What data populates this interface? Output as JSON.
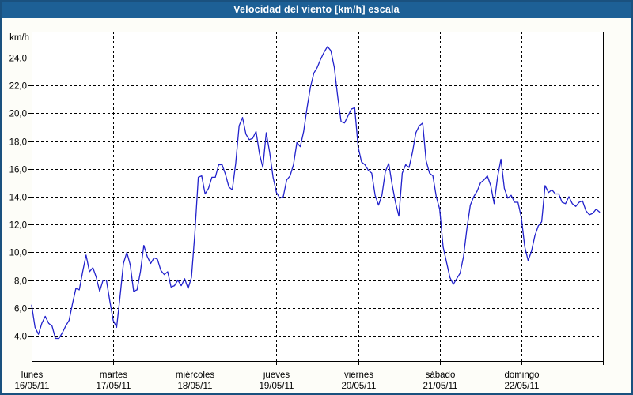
{
  "window": {
    "title": "Velocidad del viento [km/h] escala",
    "colors": {
      "titlebar_bg": "#1d6096",
      "titlebar_text": "#ffffff",
      "window_border": "#1a517f",
      "window_bg": "#fdfdf8",
      "plot_bg": "#ffffff",
      "grid_color": "#000000",
      "axis_text": "#000000",
      "series_color": "#2222cc"
    }
  },
  "chart_data": {
    "type": "line",
    "title": "Velocidad del viento [km/h] escala",
    "ylabel": "km/h",
    "grid": "dashed",
    "legend": "none",
    "x_axis": {
      "hours_per_day": 24,
      "total_hours": 168,
      "days": [
        {
          "name": "lunes",
          "date": "16/05/11"
        },
        {
          "name": "martes",
          "date": "17/05/11"
        },
        {
          "name": "miércoles",
          "date": "18/05/11"
        },
        {
          "name": "jueves",
          "date": "19/05/11"
        },
        {
          "name": "viernes",
          "date": "20/05/11"
        },
        {
          "name": "sábado",
          "date": "21/05/11"
        },
        {
          "name": "domingo",
          "date": "22/05/11"
        }
      ]
    },
    "y_axis": {
      "min": 2.2,
      "max": 25.9,
      "tick_step": 2,
      "ticks": [
        {
          "v": 24,
          "label": "24,0"
        },
        {
          "v": 22,
          "label": "22,0"
        },
        {
          "v": 20,
          "label": "20,0"
        },
        {
          "v": 18,
          "label": "18,0"
        },
        {
          "v": 16,
          "label": "16,0"
        },
        {
          "v": 14,
          "label": "14,0"
        },
        {
          "v": 12,
          "label": "12,0"
        },
        {
          "v": 10,
          "label": "10,0"
        },
        {
          "v": 8,
          "label": "8,0"
        },
        {
          "v": 6,
          "label": "6,0"
        },
        {
          "v": 4,
          "label": "4,0"
        }
      ]
    },
    "series": [
      {
        "name": "Velocidad del viento",
        "unit": "km/h",
        "color": "#2222cc",
        "points_hours_kmh": [
          [
            0,
            6.2
          ],
          [
            1,
            4.6
          ],
          [
            2,
            4.1
          ],
          [
            3,
            4.9
          ],
          [
            4,
            5.4
          ],
          [
            5,
            4.9
          ],
          [
            6,
            4.7
          ],
          [
            7,
            3.8
          ],
          [
            8,
            3.8
          ],
          [
            9,
            4.2
          ],
          [
            10,
            4.7
          ],
          [
            11,
            5.1
          ],
          [
            12,
            6.3
          ],
          [
            13,
            7.4
          ],
          [
            14,
            7.3
          ],
          [
            15,
            8.6
          ],
          [
            16,
            9.8
          ],
          [
            17,
            8.6
          ],
          [
            18,
            8.9
          ],
          [
            19,
            8.2
          ],
          [
            20,
            7.2
          ],
          [
            21,
            8.0
          ],
          [
            22,
            8.0
          ],
          [
            23,
            6.5
          ],
          [
            24,
            5.1
          ],
          [
            25,
            4.6
          ],
          [
            26,
            6.8
          ],
          [
            27,
            9.2
          ],
          [
            28,
            10.0
          ],
          [
            29,
            9.1
          ],
          [
            30,
            7.2
          ],
          [
            31,
            7.3
          ],
          [
            32,
            8.6
          ],
          [
            33,
            10.5
          ],
          [
            34,
            9.7
          ],
          [
            35,
            9.2
          ],
          [
            36,
            9.6
          ],
          [
            37,
            9.5
          ],
          [
            38,
            8.7
          ],
          [
            39,
            8.4
          ],
          [
            40,
            8.6
          ],
          [
            41,
            7.5
          ],
          [
            42,
            7.6
          ],
          [
            43,
            8.0
          ],
          [
            44,
            7.6
          ],
          [
            45,
            8.1
          ],
          [
            46,
            7.4
          ],
          [
            47,
            8.2
          ],
          [
            48,
            11.4
          ],
          [
            49,
            15.4
          ],
          [
            50,
            15.5
          ],
          [
            51,
            14.2
          ],
          [
            52,
            14.6
          ],
          [
            53,
            15.4
          ],
          [
            54,
            15.4
          ],
          [
            55,
            16.3
          ],
          [
            56,
            16.3
          ],
          [
            57,
            15.6
          ],
          [
            58,
            14.7
          ],
          [
            59,
            14.5
          ],
          [
            60,
            16.4
          ],
          [
            61,
            19.1
          ],
          [
            62,
            19.7
          ],
          [
            63,
            18.5
          ],
          [
            64,
            18.1
          ],
          [
            65,
            18.2
          ],
          [
            66,
            18.7
          ],
          [
            67,
            17.1
          ],
          [
            68,
            16.1
          ],
          [
            69,
            18.6
          ],
          [
            70,
            17.2
          ],
          [
            71,
            15.4
          ],
          [
            72,
            14.3
          ],
          [
            73,
            13.9
          ],
          [
            74,
            14.0
          ],
          [
            75,
            15.2
          ],
          [
            76,
            15.5
          ],
          [
            77,
            16.3
          ],
          [
            78,
            17.9
          ],
          [
            79,
            17.6
          ],
          [
            80,
            18.7
          ],
          [
            81,
            20.4
          ],
          [
            82,
            21.9
          ],
          [
            83,
            22.9
          ],
          [
            84,
            23.3
          ],
          [
            85,
            23.9
          ],
          [
            86,
            24.4
          ],
          [
            87,
            24.8
          ],
          [
            88,
            24.5
          ],
          [
            89,
            23.3
          ],
          [
            90,
            21.2
          ],
          [
            91,
            19.4
          ],
          [
            92,
            19.3
          ],
          [
            93,
            19.8
          ],
          [
            94,
            20.3
          ],
          [
            95,
            20.4
          ],
          [
            96,
            17.6
          ],
          [
            97,
            16.5
          ],
          [
            98,
            16.3
          ],
          [
            99,
            15.9
          ],
          [
            100,
            15.7
          ],
          [
            101,
            14.1
          ],
          [
            102,
            13.4
          ],
          [
            103,
            14.1
          ],
          [
            104,
            15.8
          ],
          [
            105,
            16.4
          ],
          [
            106,
            14.9
          ],
          [
            107,
            13.6
          ],
          [
            108,
            12.6
          ],
          [
            109,
            15.7
          ],
          [
            110,
            16.3
          ],
          [
            111,
            16.1
          ],
          [
            112,
            17.2
          ],
          [
            113,
            18.6
          ],
          [
            114,
            19.1
          ],
          [
            115,
            19.3
          ],
          [
            116,
            16.6
          ],
          [
            117,
            15.7
          ],
          [
            118,
            15.5
          ],
          [
            119,
            14.0
          ],
          [
            120,
            13.1
          ],
          [
            121,
            10.4
          ],
          [
            122,
            9.3
          ],
          [
            123,
            8.2
          ],
          [
            124,
            7.7
          ],
          [
            125,
            8.1
          ],
          [
            126,
            8.5
          ],
          [
            127,
            9.7
          ],
          [
            128,
            11.7
          ],
          [
            129,
            13.4
          ],
          [
            130,
            14.0
          ],
          [
            131,
            14.4
          ],
          [
            132,
            15.0
          ],
          [
            133,
            15.2
          ],
          [
            134,
            15.5
          ],
          [
            135,
            14.8
          ],
          [
            136,
            13.5
          ],
          [
            137,
            15.4
          ],
          [
            138,
            16.7
          ],
          [
            139,
            14.6
          ],
          [
            140,
            13.9
          ],
          [
            141,
            14.1
          ],
          [
            142,
            13.6
          ],
          [
            143,
            13.6
          ],
          [
            144,
            12.5
          ],
          [
            145,
            10.4
          ],
          [
            146,
            9.4
          ],
          [
            147,
            10.1
          ],
          [
            148,
            11.2
          ],
          [
            149,
            11.9
          ],
          [
            150,
            12.2
          ],
          [
            151,
            14.8
          ],
          [
            152,
            14.3
          ],
          [
            153,
            14.5
          ],
          [
            154,
            14.2
          ],
          [
            155,
            14.2
          ],
          [
            156,
            13.6
          ],
          [
            157,
            13.5
          ],
          [
            158,
            14.0
          ],
          [
            159,
            13.5
          ],
          [
            160,
            13.3
          ],
          [
            161,
            13.6
          ],
          [
            162,
            13.7
          ],
          [
            163,
            13.0
          ],
          [
            164,
            12.7
          ],
          [
            165,
            12.8
          ],
          [
            166,
            13.1
          ],
          [
            167,
            12.9
          ]
        ]
      }
    ]
  }
}
